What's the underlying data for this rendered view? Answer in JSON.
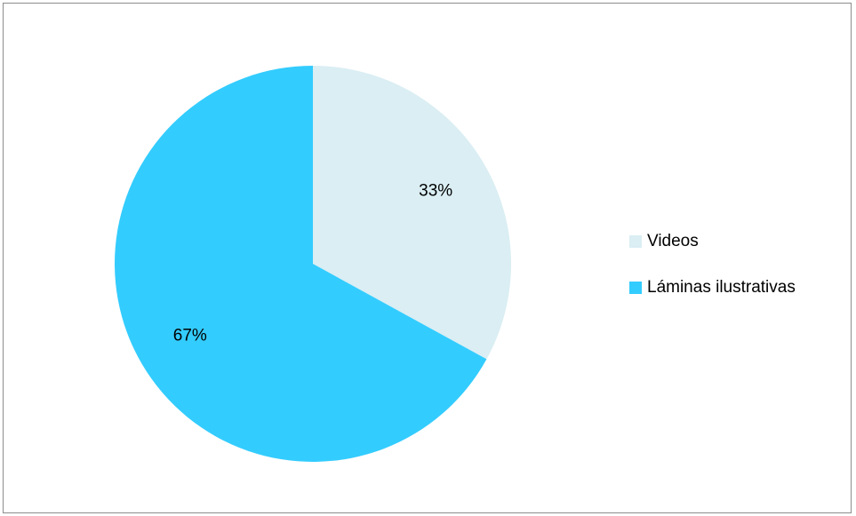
{
  "chart_data": {
    "type": "pie",
    "title": "",
    "slices": [
      {
        "name": "Videos",
        "value": 33,
        "label": "33%",
        "color": "#DAEEF3"
      },
      {
        "name": "Láminas ilustrativas",
        "value": 67,
        "label": "67%",
        "color": "#33CCFF"
      }
    ],
    "legend_position": "right"
  }
}
